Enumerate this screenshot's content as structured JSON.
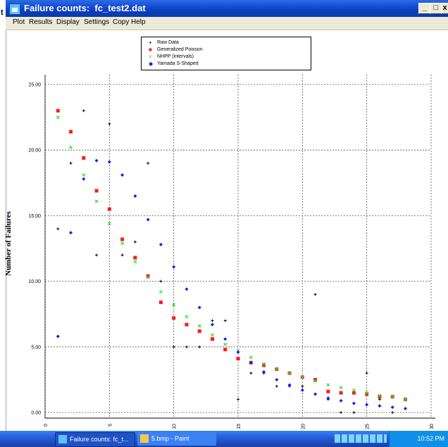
{
  "window": {
    "title": "Failure counts:  fc_test2.dat",
    "left_strip_char": "t",
    "controls": [
      "_",
      "□",
      "x"
    ]
  },
  "menu": {
    "items": [
      "Plot",
      "Results",
      "Display",
      "Settings",
      "Copy",
      "Help"
    ]
  },
  "legend": {
    "entries": [
      {
        "label": "Raw Data",
        "marker": "+",
        "color": "#000000"
      },
      {
        "label": "Generalized Poisson",
        "marker": "square",
        "color": "#ff1a1a"
      },
      {
        "label": "NHPP (intervals)",
        "marker": "x",
        "color": "#33dd33"
      },
      {
        "label": "Yamada S-Shaped",
        "marker": "diamond",
        "color": "#1a1aff"
      }
    ]
  },
  "taskbar": {
    "item1": "Failure counts:  fc_t...",
    "item2": "5.bmp - Paint",
    "clock": "10:52 PM"
  },
  "chart_data": {
    "type": "scatter",
    "title": "",
    "xlabel": "",
    "ylabel": "Number of Failures",
    "xlim": [
      0,
      30
    ],
    "ylim": [
      0,
      25
    ],
    "x_ticks": [
      "0",
      "5",
      "10",
      "15",
      "20",
      "25",
      "30"
    ],
    "y_ticks": [
      "0.00",
      "5.00",
      "10.00",
      "15.00",
      "20.00",
      "25.00"
    ],
    "grid": true,
    "legend_position": "top-center",
    "series": [
      {
        "name": "Raw Data",
        "color": "#000000",
        "marker": "plus",
        "x": [
          1,
          2,
          3,
          4,
          5,
          6,
          7,
          8,
          9,
          10,
          11,
          12,
          13,
          14,
          15,
          16,
          17,
          18,
          19,
          20,
          21,
          22,
          23,
          24,
          25,
          26,
          27,
          28
        ],
        "y": [
          14,
          19,
          23,
          12,
          22,
          12,
          13,
          19,
          10,
          5,
          5,
          5,
          7,
          7,
          1,
          3,
          3,
          2,
          2,
          2,
          9,
          1,
          0,
          0,
          3,
          1,
          0,
          1
        ]
      },
      {
        "name": "Generalized Poisson",
        "color": "#ff1a1a",
        "marker": "square",
        "x": [
          1,
          2,
          3,
          4,
          5,
          6,
          7,
          8,
          9,
          10,
          11,
          12,
          13,
          14,
          15,
          16,
          17,
          18,
          19,
          20,
          21,
          22,
          23,
          24,
          25,
          26,
          27,
          28
        ],
        "y": [
          23.0,
          21.4,
          19.4,
          16.9,
          15.5,
          13.2,
          11.8,
          10.4,
          8.4,
          7.2,
          6.7,
          6.2,
          5.6,
          4.8,
          4.1,
          3.8,
          3.6,
          3.3,
          3.0,
          2.7,
          2.5,
          1.6,
          1.5,
          1.5,
          1.4,
          1.2,
          1.2,
          1.0
        ]
      },
      {
        "name": "NHPP (intervals)",
        "color": "#33dd33",
        "marker": "x",
        "x": [
          1,
          2,
          3,
          4,
          5,
          6,
          7,
          8,
          9,
          10,
          11,
          12,
          13,
          14,
          15,
          16,
          17,
          18,
          19,
          20,
          21,
          22,
          23,
          24,
          25,
          26,
          27,
          28
        ],
        "y": [
          22.5,
          20.2,
          18.1,
          16.1,
          14.4,
          12.9,
          11.5,
          10.3,
          9.2,
          8.2,
          7.3,
          6.6,
          5.9,
          5.2,
          4.7,
          4.2,
          3.7,
          3.3,
          3.0,
          2.7,
          2.4,
          2.1,
          1.9,
          1.7,
          1.5,
          1.3,
          1.2,
          1.0
        ]
      },
      {
        "name": "Yamada S-Shaped",
        "color": "#1a1aff",
        "marker": "diamond",
        "x": [
          1,
          2,
          3,
          4,
          5,
          6,
          7,
          8,
          9,
          10,
          11,
          12,
          13,
          14,
          15,
          16,
          17,
          18,
          19,
          20,
          21,
          22,
          23,
          24,
          25,
          26,
          27,
          28
        ],
        "y": [
          5.8,
          13.7,
          17.8,
          19.2,
          19.1,
          18.1,
          16.5,
          14.7,
          12.8,
          11.1,
          9.4,
          8.0,
          6.7,
          5.6,
          4.6,
          3.8,
          3.1,
          2.5,
          2.1,
          1.7,
          1.4,
          1.1,
          0.9,
          0.7,
          0.6,
          0.5,
          0.4,
          0.3
        ]
      }
    ]
  }
}
